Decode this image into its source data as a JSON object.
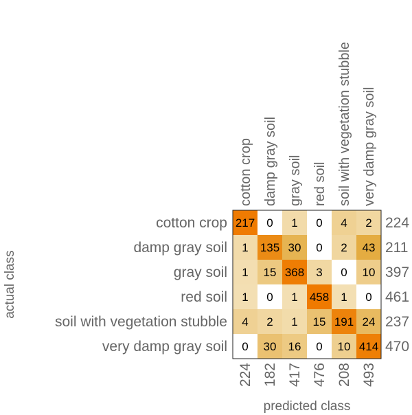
{
  "chart_data": {
    "type": "heatmap",
    "subtype": "confusion-matrix",
    "xlabel": "predicted class",
    "ylabel": "actual class",
    "classes": [
      "cotton crop",
      "damp gray soil",
      "gray soil",
      "red soil",
      "soil with vegetation stubble",
      "very damp gray soil"
    ],
    "matrix": [
      [
        217,
        0,
        1,
        0,
        4,
        2
      ],
      [
        1,
        135,
        30,
        0,
        2,
        43
      ],
      [
        1,
        15,
        368,
        3,
        0,
        10
      ],
      [
        1,
        0,
        1,
        458,
        1,
        0
      ],
      [
        4,
        2,
        1,
        15,
        191,
        24
      ],
      [
        0,
        30,
        16,
        0,
        10,
        414
      ]
    ],
    "row_totals": [
      224,
      211,
      397,
      461,
      237,
      470
    ],
    "column_totals": [
      224,
      182,
      417,
      476,
      208,
      493
    ],
    "color_scale": {
      "zero": "#ffffff",
      "low": "#f7ecd0",
      "mid": "#e3a93a",
      "high": "#ef7a00"
    }
  }
}
